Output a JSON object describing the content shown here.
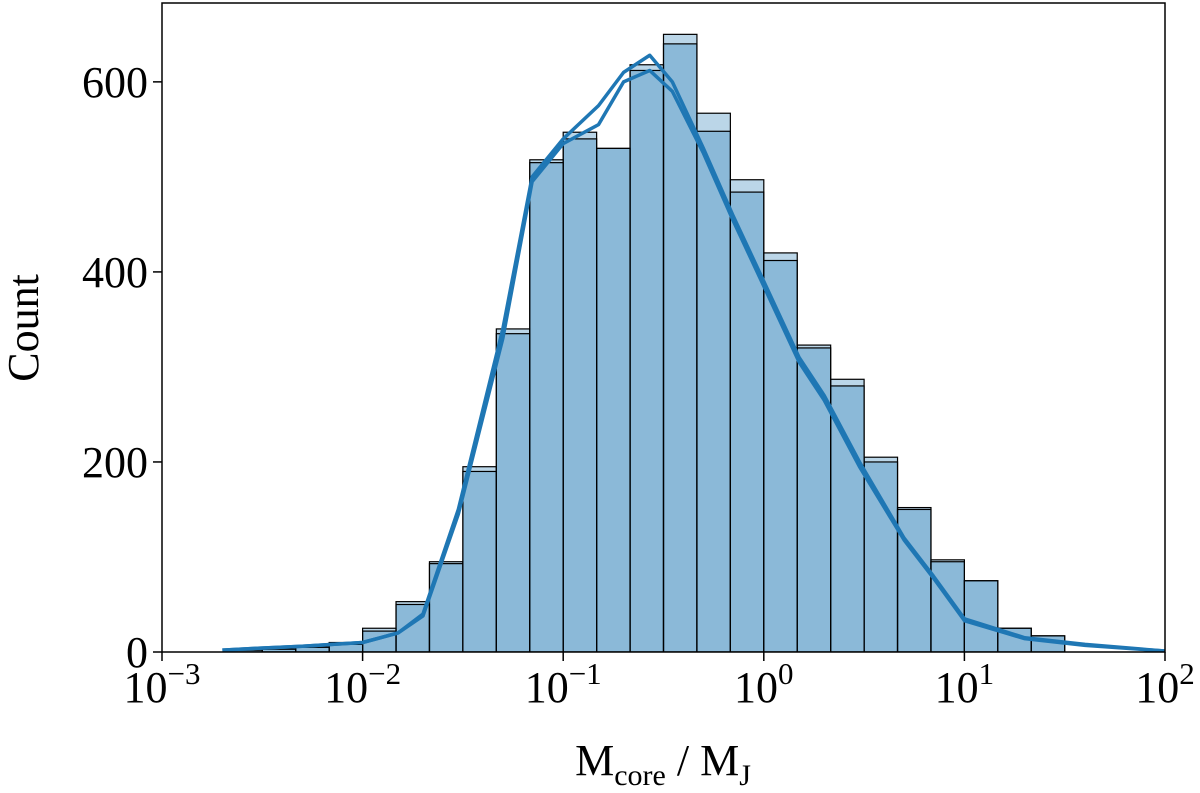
{
  "chart_data": {
    "type": "histogram",
    "xlabel": [
      "M",
      "core",
      " / M",
      "J"
    ],
    "ylabel": "Count",
    "xscale": "log",
    "xlim": [
      0.001,
      100
    ],
    "xticks": [
      {
        "value": 0.001,
        "label": "10",
        "exponent": "−3"
      },
      {
        "value": 0.01,
        "label": "10",
        "exponent": "−2"
      },
      {
        "value": 0.1,
        "label": "10",
        "exponent": "−1"
      },
      {
        "value": 1,
        "label": "10",
        "exponent": "0"
      },
      {
        "value": 10,
        "label": "10",
        "exponent": "1"
      },
      {
        "value": 100,
        "label": "10",
        "exponent": "2"
      }
    ],
    "ylim": [
      0,
      683
    ],
    "yticks": [
      0,
      200,
      400,
      600
    ],
    "bins": [
      0.002154,
      0.003162,
      0.004642,
      0.006813,
      0.01,
      0.014678,
      0.021544,
      0.031623,
      0.046416,
      0.068129,
      0.1,
      0.14678,
      0.21544,
      0.31623,
      0.46416,
      0.68129,
      1,
      1.4678,
      2.1544,
      3.1623,
      4.6416,
      6.8129,
      10,
      14.678,
      21.544,
      31.623
    ],
    "kde_x": [
      0.002,
      0.003,
      0.005,
      0.01,
      0.015,
      0.02,
      0.03,
      0.05,
      0.07,
      0.1,
      0.15,
      0.2,
      0.27,
      0.35,
      0.5,
      0.7,
      1,
      1.5,
      2,
      3,
      5,
      7,
      10,
      20,
      40,
      100
    ],
    "series": [
      {
        "color": "#1f77b4",
        "values": [
          2,
          3,
          5,
          10,
          25,
          53,
          95,
          195,
          340,
          518,
          547,
          530,
          618,
          650,
          567,
          497,
          420,
          323,
          287,
          205,
          152,
          97,
          75,
          25,
          17
        ],
        "kde": [
          2,
          4,
          6,
          10,
          20,
          40,
          150,
          340,
          500,
          540,
          575,
          610,
          628,
          600,
          530,
          460,
          390,
          310,
          270,
          200,
          120,
          80,
          35,
          15,
          8,
          1
        ]
      },
      {
        "color": "#1f77b4",
        "values": [
          2,
          3,
          5,
          8,
          22,
          50,
          93,
          190,
          335,
          515,
          540,
          530,
          612,
          640,
          548,
          484,
          412,
          320,
          280,
          200,
          150,
          95,
          75,
          25,
          17
        ],
        "kde": [
          2,
          4,
          6,
          10,
          20,
          38,
          145,
          330,
          495,
          535,
          555,
          600,
          612,
          590,
          525,
          455,
          385,
          305,
          265,
          195,
          118,
          78,
          33,
          14,
          7,
          1
        ]
      }
    ]
  }
}
